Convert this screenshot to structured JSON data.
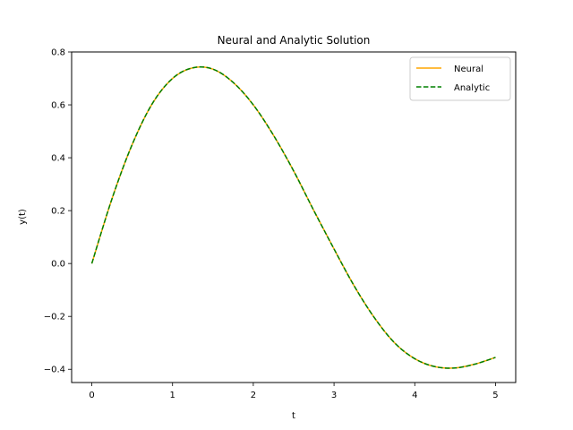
{
  "chart_data": {
    "type": "line",
    "title": "Neural and Analytic Solution",
    "xlabel": "t",
    "ylabel": "y(t)",
    "xlim": [
      -0.25,
      5.25
    ],
    "ylim": [
      -0.45,
      0.8
    ],
    "xticks": [
      0,
      1,
      2,
      3,
      4,
      5
    ],
    "xtick_labels": [
      "0",
      "1",
      "2",
      "3",
      "4",
      "5"
    ],
    "yticks": [
      -0.4,
      -0.2,
      0.0,
      0.2,
      0.4,
      0.6,
      0.8
    ],
    "ytick_labels": [
      "−0.4",
      "−0.2",
      "0.0",
      "0.2",
      "0.4",
      "0.6",
      "0.8"
    ],
    "grid": false,
    "legend": "top-right",
    "x": [
      0,
      0.25,
      0.5,
      0.75,
      1.0,
      1.25,
      1.5,
      1.75,
      2.0,
      2.25,
      2.5,
      2.75,
      3.0,
      3.25,
      3.5,
      3.75,
      4.0,
      4.25,
      4.5,
      4.75,
      5.0
    ],
    "series": [
      {
        "name": "Neural",
        "color": "#ffa500",
        "style": "solid",
        "values": [
          0.0,
          0.245,
          0.45,
          0.605,
          0.7,
          0.74,
          0.735,
          0.685,
          0.6,
          0.485,
          0.35,
          0.2,
          0.055,
          -0.085,
          -0.205,
          -0.3,
          -0.36,
          -0.39,
          -0.395,
          -0.38,
          -0.355
        ]
      },
      {
        "name": "Analytic",
        "color": "#008000",
        "style": "dashed",
        "values": [
          0.0,
          0.245,
          0.45,
          0.605,
          0.7,
          0.74,
          0.735,
          0.685,
          0.6,
          0.485,
          0.35,
          0.2,
          0.055,
          -0.085,
          -0.205,
          -0.3,
          -0.36,
          -0.39,
          -0.395,
          -0.38,
          -0.355
        ]
      }
    ]
  }
}
